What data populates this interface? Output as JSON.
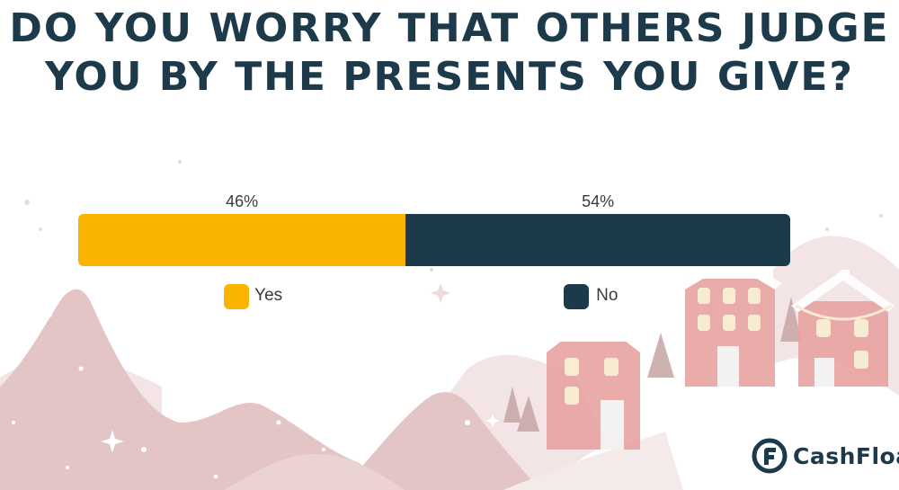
{
  "title": {
    "line1": "DO YOU WORRY THAT OTHERS JUDGE",
    "line2": "YOU BY THE PRESENTS YOU GIVE?"
  },
  "colors": {
    "title": "#1d3a4a",
    "yes": "#f8b400",
    "no": "#1d3a4a",
    "hills": "#e3c5c5",
    "snow": "#ffffff",
    "house": "#e9a4a4",
    "logo": "#1d3a4a"
  },
  "chart_data": {
    "type": "bar",
    "orientation": "horizontal-stacked-100",
    "categories": [
      "Yes",
      "No"
    ],
    "values": [
      46,
      54
    ],
    "labels": [
      "46%",
      "54%"
    ],
    "unit": "%",
    "legend": {
      "position": "bottom",
      "entries": [
        "Yes",
        "No"
      ]
    }
  },
  "brand": {
    "logo_text": "CashFloat",
    "logo_icon": "cashfloat-f-icon"
  }
}
